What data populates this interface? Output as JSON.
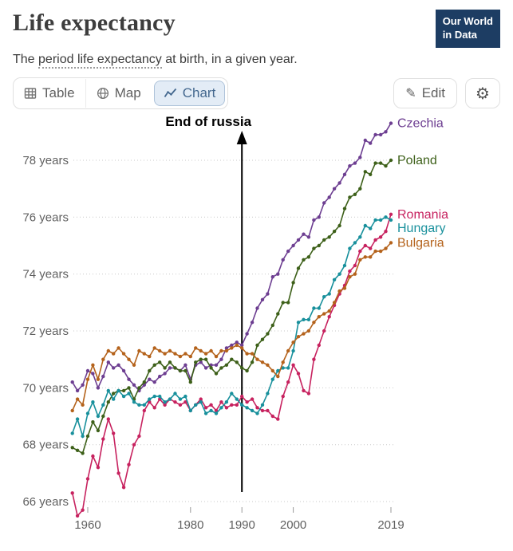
{
  "header": {
    "title": "Life expectancy",
    "subtitle_prefix": "The ",
    "subtitle_underlined": "period life expectancy",
    "subtitle_suffix": " at birth, in a given year.",
    "logo": {
      "line1": "Our World",
      "line2": "in Data",
      "bg_color": "#1d3d63"
    }
  },
  "controls": {
    "tabs": [
      {
        "id": "table",
        "label": "Table",
        "active": false
      },
      {
        "id": "map",
        "label": "Map",
        "active": false
      },
      {
        "id": "chart",
        "label": "Chart",
        "active": true
      }
    ],
    "edit_label": "Edit",
    "gear_glyph": "⚙",
    "pencil_glyph": "✎"
  },
  "chart_data": {
    "type": "line",
    "title": "Life expectancy",
    "ylabel": "",
    "xlabel": "",
    "grid": "dotted-horizontal",
    "legend_position": "right-of-lines",
    "y_ticks": [
      66,
      68,
      70,
      72,
      74,
      76,
      78
    ],
    "y_tick_suffix": " years",
    "x_ticks": [
      1960,
      1980,
      1990,
      2000,
      2019
    ],
    "ylim": [
      65.2,
      79.8
    ],
    "xlim": [
      1956,
      2021
    ],
    "annotation": {
      "text": "End of russia",
      "year": 1990
    },
    "x": [
      1957,
      1958,
      1959,
      1960,
      1961,
      1962,
      1963,
      1964,
      1965,
      1966,
      1967,
      1968,
      1969,
      1970,
      1971,
      1972,
      1973,
      1974,
      1975,
      1976,
      1977,
      1978,
      1979,
      1980,
      1981,
      1982,
      1983,
      1984,
      1985,
      1986,
      1987,
      1988,
      1989,
      1990,
      1991,
      1992,
      1993,
      1994,
      1995,
      1996,
      1997,
      1998,
      1999,
      2000,
      2001,
      2002,
      2003,
      2004,
      2005,
      2006,
      2007,
      2008,
      2009,
      2010,
      2011,
      2012,
      2013,
      2014,
      2015,
      2016,
      2017,
      2018,
      2019
    ],
    "series": [
      {
        "name": "Czechia",
        "color": "#6D3E91",
        "values": [
          70.2,
          69.9,
          70.1,
          70.6,
          70.5,
          70.0,
          70.4,
          70.9,
          70.7,
          70.8,
          70.6,
          70.3,
          70.1,
          69.9,
          70.1,
          70.3,
          70.2,
          70.4,
          70.5,
          70.7,
          70.7,
          70.6,
          70.8,
          70.3,
          70.8,
          70.9,
          70.7,
          70.8,
          70.8,
          71.0,
          71.4,
          71.5,
          71.6,
          71.5,
          71.9,
          72.3,
          72.8,
          73.1,
          73.3,
          73.9,
          74.0,
          74.5,
          74.8,
          75.0,
          75.2,
          75.4,
          75.3,
          75.9,
          76.0,
          76.5,
          76.7,
          77.0,
          77.2,
          77.5,
          77.8,
          77.9,
          78.1,
          78.7,
          78.6,
          78.9,
          78.9,
          79.0,
          79.3
        ]
      },
      {
        "name": "Poland",
        "color": "#3D6019",
        "values": [
          67.9,
          67.8,
          67.7,
          68.3,
          68.8,
          68.5,
          69.0,
          69.5,
          69.8,
          69.9,
          69.9,
          70.0,
          69.6,
          70.0,
          70.2,
          70.6,
          70.8,
          70.9,
          70.7,
          70.9,
          70.7,
          70.6,
          70.6,
          70.2,
          70.9,
          71.0,
          71.0,
          70.7,
          70.5,
          70.7,
          70.8,
          71.0,
          70.9,
          70.7,
          70.6,
          70.9,
          71.5,
          71.7,
          71.9,
          72.2,
          72.6,
          73.0,
          73.0,
          73.7,
          74.2,
          74.5,
          74.6,
          74.9,
          75.0,
          75.2,
          75.3,
          75.5,
          75.7,
          76.3,
          76.7,
          76.8,
          77.0,
          77.6,
          77.5,
          77.9,
          77.9,
          77.8,
          78.0
        ]
      },
      {
        "name": "Romania",
        "color": "#C7225F",
        "values": [
          66.3,
          65.5,
          65.7,
          66.8,
          67.6,
          67.2,
          68.2,
          68.9,
          68.4,
          67.0,
          66.5,
          67.3,
          68.0,
          68.3,
          69.2,
          69.5,
          69.3,
          69.6,
          69.4,
          69.6,
          69.5,
          69.4,
          69.5,
          69.2,
          69.4,
          69.6,
          69.3,
          69.4,
          69.2,
          69.5,
          69.3,
          69.4,
          69.4,
          69.7,
          69.5,
          69.6,
          69.3,
          69.2,
          69.2,
          69.0,
          68.9,
          69.7,
          70.2,
          70.8,
          70.5,
          69.9,
          69.8,
          71.0,
          71.5,
          72.0,
          72.5,
          72.9,
          73.3,
          73.6,
          74.1,
          74.3,
          74.8,
          75.0,
          74.9,
          75.2,
          75.3,
          75.5,
          76.1
        ]
      },
      {
        "name": "Hungary",
        "color": "#18909C",
        "values": [
          68.4,
          68.9,
          68.3,
          69.1,
          69.5,
          69.0,
          69.4,
          69.9,
          69.6,
          69.9,
          69.7,
          69.8,
          69.5,
          69.4,
          69.4,
          69.6,
          69.7,
          69.7,
          69.5,
          69.6,
          69.8,
          69.6,
          69.7,
          69.2,
          69.4,
          69.5,
          69.1,
          69.2,
          69.1,
          69.3,
          69.5,
          69.8,
          69.6,
          69.4,
          69.3,
          69.2,
          69.1,
          69.4,
          69.8,
          70.3,
          70.6,
          70.7,
          70.7,
          71.3,
          72.3,
          72.4,
          72.4,
          72.8,
          72.8,
          73.2,
          73.3,
          73.8,
          74.0,
          74.3,
          74.9,
          75.1,
          75.3,
          75.7,
          75.6,
          75.9,
          75.9,
          76.0,
          75.9
        ]
      },
      {
        "name": "Bulgaria",
        "color": "#B4621B",
        "values": [
          69.2,
          69.6,
          69.4,
          70.3,
          70.8,
          70.3,
          71.0,
          71.3,
          71.2,
          71.4,
          71.2,
          71.0,
          70.8,
          71.3,
          71.2,
          71.1,
          71.4,
          71.3,
          71.2,
          71.3,
          71.2,
          71.1,
          71.2,
          71.1,
          71.4,
          71.3,
          71.2,
          71.3,
          71.1,
          71.3,
          71.3,
          71.4,
          71.5,
          71.4,
          71.2,
          71.2,
          71.0,
          70.9,
          70.8,
          70.6,
          70.4,
          70.9,
          71.3,
          71.6,
          71.8,
          71.9,
          72.0,
          72.3,
          72.5,
          72.6,
          72.7,
          73.0,
          73.4,
          73.5,
          73.9,
          74.0,
          74.5,
          74.6,
          74.6,
          74.8,
          74.8,
          74.9,
          75.1
        ]
      }
    ]
  }
}
